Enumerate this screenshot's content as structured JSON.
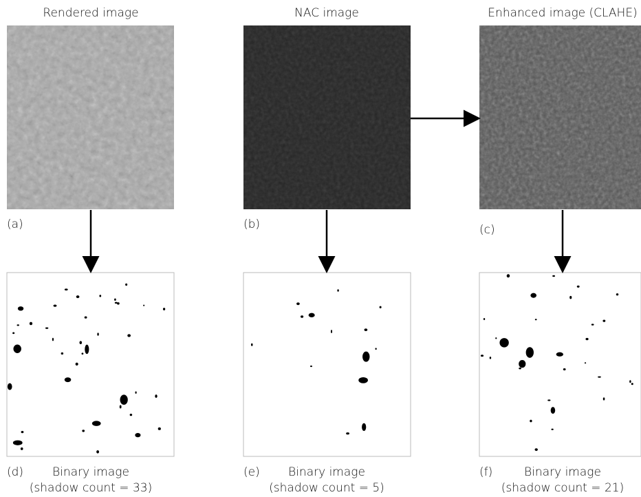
{
  "source_panels": [
    {
      "title": "Rendered image",
      "label": "(a)"
    },
    {
      "title": "NAC image",
      "label": "(b)"
    },
    {
      "title": "Enhanced image (CLAHE)",
      "label": "(c)"
    }
  ],
  "binary_panels": [
    {
      "label": "(d)",
      "title": "Binary image",
      "caption": "(shadow count = 33)"
    },
    {
      "label": "(e)",
      "title": "Binary image",
      "caption": "(shadow count = 5)"
    },
    {
      "label": "(f)",
      "title": "Binary image",
      "caption": "(shadow count = 21)"
    }
  ]
}
